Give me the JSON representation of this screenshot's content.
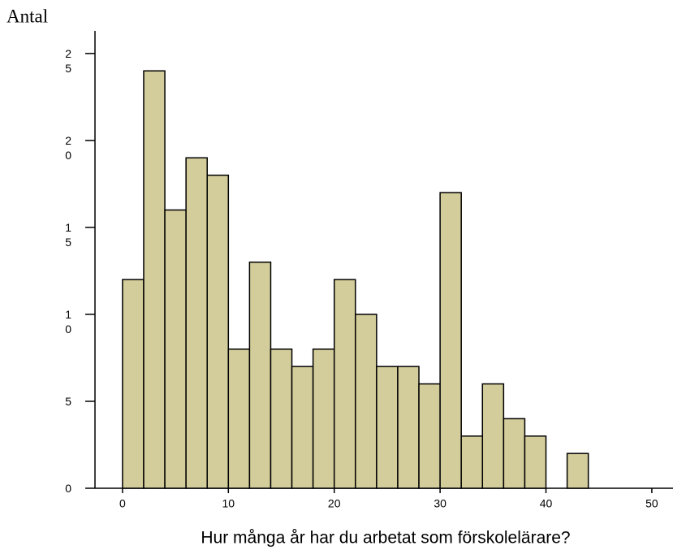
{
  "chart_data": {
    "type": "histogram",
    "y_label": "Antal",
    "x_label": "Hur många år har du arbetat som förskolelärare?",
    "bins": [
      0,
      2,
      4,
      6,
      8,
      10,
      12,
      14,
      16,
      18,
      20,
      22,
      24,
      26,
      28,
      30,
      32,
      34,
      36,
      38,
      40,
      42,
      44
    ],
    "values": [
      12,
      24,
      16,
      19,
      18,
      8,
      13,
      8,
      7,
      8,
      12,
      10,
      7,
      7,
      6,
      17,
      3,
      6,
      4,
      3,
      0,
      2
    ],
    "color": "#d3cc9b",
    "xlim": [
      -2.6,
      52
    ],
    "ylim": [
      0,
      26.3
    ],
    "xticks": [
      0,
      10,
      20,
      30,
      40,
      50
    ],
    "yticks": [
      0,
      5,
      10,
      15,
      20,
      25
    ]
  }
}
